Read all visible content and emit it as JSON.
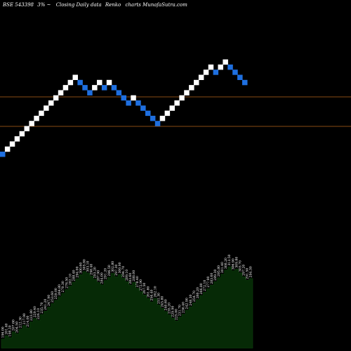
{
  "header": {
    "code": "BSE 543398",
    "step": "3%",
    "separator": "~",
    "caption": "Closing Daily data",
    "chart_kind": "Renko",
    "site": "charts MunafaSutra.com"
  },
  "colors": {
    "background": "#000000",
    "up_brick": "#ffffff",
    "down_brick": "#1e6fe0",
    "level_line": "#b5651d",
    "volume_fill": "#062a06",
    "volume_edge": "#0c3e0c"
  },
  "chart_data": {
    "type": "renko",
    "brick_pct": 3,
    "bricks": [
      {
        "dir": "down"
      },
      {
        "dir": "up"
      },
      {
        "dir": "up"
      },
      {
        "dir": "up"
      },
      {
        "dir": "up"
      },
      {
        "dir": "up"
      },
      {
        "dir": "up"
      },
      {
        "dir": "up"
      },
      {
        "dir": "up"
      },
      {
        "dir": "up"
      },
      {
        "dir": "up"
      },
      {
        "dir": "up"
      },
      {
        "dir": "up"
      },
      {
        "dir": "up"
      },
      {
        "dir": "up"
      },
      {
        "dir": "up"
      },
      {
        "dir": "down"
      },
      {
        "dir": "down"
      },
      {
        "dir": "down"
      },
      {
        "dir": "up"
      },
      {
        "dir": "up"
      },
      {
        "dir": "down"
      },
      {
        "dir": "up"
      },
      {
        "dir": "down"
      },
      {
        "dir": "down"
      },
      {
        "dir": "down"
      },
      {
        "dir": "down"
      },
      {
        "dir": "up"
      },
      {
        "dir": "down"
      },
      {
        "dir": "down"
      },
      {
        "dir": "down"
      },
      {
        "dir": "down"
      },
      {
        "dir": "down"
      },
      {
        "dir": "up"
      },
      {
        "dir": "up"
      },
      {
        "dir": "up"
      },
      {
        "dir": "up"
      },
      {
        "dir": "up"
      },
      {
        "dir": "up"
      },
      {
        "dir": "up"
      },
      {
        "dir": "up"
      },
      {
        "dir": "up"
      },
      {
        "dir": "up"
      },
      {
        "dir": "up"
      },
      {
        "dir": "down"
      },
      {
        "dir": "up"
      },
      {
        "dir": "up"
      },
      {
        "dir": "down"
      },
      {
        "dir": "down"
      },
      {
        "dir": "down"
      },
      {
        "dir": "down"
      }
    ],
    "level_lines_count": 2,
    "volume_labels": [
      "196.00",
      "201.40",
      "198.20",
      "207.60",
      "204.50",
      "212.30",
      "217.90",
      "214.00",
      "223.80",
      "229.40",
      "226.10",
      "235.70",
      "241.20",
      "247.90",
      "253.60",
      "259.00",
      "264.80",
      "270.30",
      "276.50",
      "282.10",
      "288.40",
      "294.00",
      "300.60",
      "305.80",
      "303.10",
      "298.40",
      "293.20",
      "287.90",
      "284.00",
      "291.20",
      "296.50",
      "302.80",
      "297.30",
      "300.90",
      "294.70",
      "289.10",
      "283.60",
      "288.00",
      "278.40",
      "272.90",
      "267.50",
      "261.80",
      "256.40",
      "262.10",
      "251.30",
      "245.80",
      "240.60",
      "235.20",
      "229.90",
      "225.00",
      "231.70",
      "236.40",
      "242.90",
      "248.30",
      "254.70",
      "260.20",
      "266.80",
      "272.10",
      "277.90",
      "283.60",
      "289.30",
      "295.80",
      "301.40",
      "308.20",
      "313.50",
      "306.90",
      "309.80",
      "303.70",
      "297.20",
      "291.50",
      "294.30"
    ]
  }
}
